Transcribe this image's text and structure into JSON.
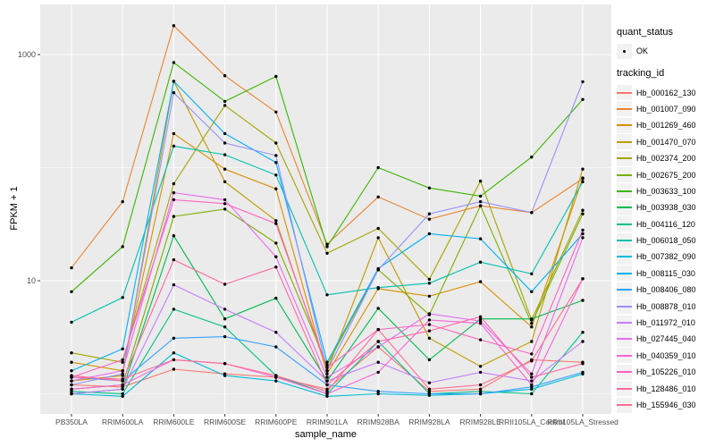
{
  "chart_data": {
    "type": "line",
    "xlabel": "sample_name",
    "ylabel": "FPKM + 1",
    "y_scale": "log10",
    "y_ticks": [
      {
        "label": "10",
        "value": 10
      },
      {
        "label": "1000",
        "value": 1000
      }
    ],
    "y_minor_values": [
      1,
      100
    ],
    "grid": true,
    "legend_position": "right",
    "point_color": "#000000",
    "categories": [
      "PB350LA",
      "RRIM600LA",
      "RRIM600LE",
      "RRIM600SE",
      "RRIM600PE",
      "RRIM901LA",
      "RRIM928BA",
      "RRIM928LA",
      "RRIM928LE",
      "RRII105LA_Control",
      "RRII105LA_Stressed"
    ],
    "series": [
      {
        "name": "Hb_000162_130",
        "color": "#F8766D",
        "values": [
          1.2,
          1.15,
          1.65,
          1.5,
          1.4,
          1.1,
          2.6,
          1.05,
          1.1,
          2.0,
          1.9
        ]
      },
      {
        "name": "Hb_001007_090",
        "color": "#EA8331",
        "values": [
          13,
          50,
          1800,
          650,
          310,
          21,
          55,
          35,
          46,
          40,
          80
        ]
      },
      {
        "name": "Hb_001269_460",
        "color": "#D89000",
        "values": [
          1.9,
          1.6,
          200,
          97,
          65,
          1.5,
          8.5,
          7.3,
          9.8,
          3.9,
          81
        ]
      },
      {
        "name": "Hb_001470_070",
        "color": "#C09B00",
        "values": [
          1.3,
          1.45,
          580,
          75,
          34,
          1.6,
          24,
          3.1,
          1.75,
          2.9,
          97
        ]
      },
      {
        "name": "Hb_002374_200",
        "color": "#A3A500",
        "values": [
          2.3,
          1.9,
          72,
          355,
          165,
          17.5,
          29,
          10.3,
          76,
          4.5,
          42
        ]
      },
      {
        "name": "Hb_002675_200",
        "color": "#7CAE00",
        "values": [
          1.1,
          1.2,
          37,
          43,
          21.5,
          1.8,
          12.5,
          5.0,
          46,
          4.2,
          39
        ]
      },
      {
        "name": "Hb_003633_100",
        "color": "#39B600",
        "values": [
          8,
          20,
          850,
          385,
          640,
          20,
          100,
          66,
          56,
          124,
          400
        ]
      },
      {
        "name": "Hb_003938_030",
        "color": "#00BB4E",
        "values": [
          1.0,
          1.1,
          25,
          4.6,
          7.0,
          1.3,
          5.7,
          2.0,
          4.6,
          4.6,
          6.7
        ]
      },
      {
        "name": "Hb_004116_120",
        "color": "#00C087",
        "values": [
          1.05,
          1.0,
          5.6,
          3.9,
          1.45,
          1.0,
          2.9,
          1.0,
          1.05,
          1.0,
          3.5
        ]
      },
      {
        "name": "Hb_006018_050",
        "color": "#00C0AF",
        "values": [
          4.3,
          7.1,
          155,
          130,
          86,
          7.5,
          8.7,
          9.5,
          14.6,
          11.5,
          75
        ]
      },
      {
        "name": "Hb_007382_090",
        "color": "#00BCD8",
        "values": [
          1.0,
          0.95,
          2.3,
          1.45,
          1.3,
          0.95,
          1.0,
          0.97,
          1.0,
          1.1,
          1.5
        ]
      },
      {
        "name": "Hb_008115_030",
        "color": "#00B0F6",
        "values": [
          1.6,
          2.5,
          580,
          200,
          111,
          1.9,
          12.8,
          26,
          23.5,
          8.0,
          26
        ]
      },
      {
        "name": "Hb_008406_080",
        "color": "#35A2FF",
        "values": [
          1.4,
          1.3,
          3.1,
          3.2,
          2.6,
          1.2,
          1.05,
          1.0,
          1.0,
          1.15,
          1.55
        ]
      },
      {
        "name": "Hb_008878_010",
        "color": "#9590FF",
        "values": [
          1.2,
          1.5,
          460,
          165,
          128,
          1.6,
          12.5,
          39,
          50,
          40,
          575
        ]
      },
      {
        "name": "Hb_011972_010",
        "color": "#C77CFF",
        "values": [
          1.0,
          1.1,
          9.2,
          5.6,
          3.5,
          1.3,
          1.9,
          1.25,
          1.55,
          1.3,
          2.9
        ]
      },
      {
        "name": "Hb_027445_040",
        "color": "#E76BF3",
        "values": [
          1.3,
          1.6,
          60,
          52,
          16.3,
          1.4,
          2.6,
          5.1,
          4.4,
          1.5,
          24
        ]
      },
      {
        "name": "Hb_040359_010",
        "color": "#FA62DB",
        "values": [
          1.1,
          1.2,
          2.0,
          1.85,
          1.4,
          1.0,
          1.55,
          4.5,
          4.2,
          1.2,
          10.4
        ]
      },
      {
        "name": "Hb_105226_010",
        "color": "#FF61C3",
        "values": [
          1.4,
          2.0,
          52,
          48,
          32,
          1.7,
          3.7,
          4.1,
          3.0,
          2.25,
          28
        ]
      },
      {
        "name": "Hb_128486_010",
        "color": "#FF67A4",
        "values": [
          1.45,
          1.3,
          15.3,
          9.3,
          13.2,
          1.2,
          2.9,
          3.6,
          4.8,
          1.4,
          1.85
        ]
      },
      {
        "name": "Hb_155946_030",
        "color": "#FF6C90",
        "values": [
          1.4,
          1.35,
          2.0,
          1.85,
          1.45,
          1.05,
          3.7,
          1.1,
          1.2,
          1.95,
          10.4
        ]
      }
    ]
  },
  "legend": {
    "quant_status_title": "quant_status",
    "quant_status_items": [
      {
        "label": "OK",
        "symbol": "point"
      }
    ],
    "tracking_id_title": "tracking_id"
  },
  "style": {
    "panel_bg": "#EBEBEB",
    "grid_color": "#FFFFFF",
    "tick_color": "#333333",
    "tick_label_color": "#4D4D4D",
    "legend_key_bg": "#F2F2F2"
  }
}
